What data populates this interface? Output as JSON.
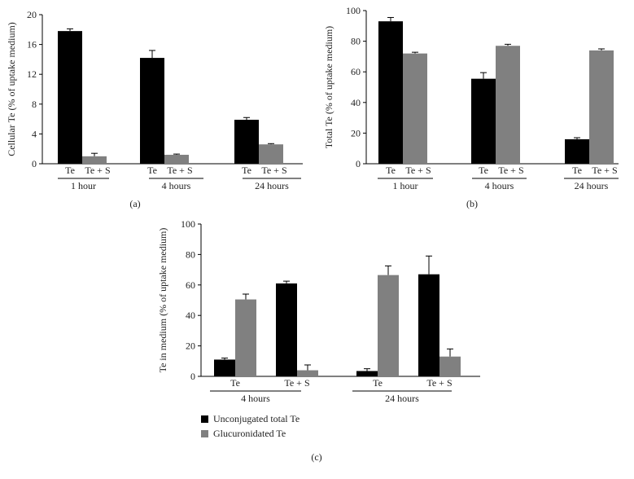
{
  "colors": {
    "black_bar": "#000000",
    "gray_bar": "#808080",
    "axis": "#000000"
  },
  "chart_data": [
    {
      "id": "a",
      "type": "bar",
      "panel_label": "(a)",
      "ylabel": "Cellular Te (% of uptake medium)",
      "ylim": [
        0,
        20
      ],
      "yticks": [
        0,
        4,
        8,
        12,
        16,
        20
      ],
      "groups": [
        {
          "label": "1 hour",
          "bars": [
            {
              "label": "Te",
              "value": 17.8,
              "error": 0.3,
              "color": "#000000"
            },
            {
              "label": "Te + S",
              "value": 1.0,
              "error": 0.4,
              "color": "#808080"
            }
          ]
        },
        {
          "label": "4 hours",
          "bars": [
            {
              "label": "Te",
              "value": 14.2,
              "error": 1.0,
              "color": "#000000"
            },
            {
              "label": "Te + S",
              "value": 1.2,
              "error": 0.1,
              "color": "#808080"
            }
          ]
        },
        {
          "label": "24 hours",
          "bars": [
            {
              "label": "Te",
              "value": 5.9,
              "error": 0.3,
              "color": "#000000"
            },
            {
              "label": "Te + S",
              "value": 2.6,
              "error": 0.1,
              "color": "#808080"
            }
          ]
        }
      ]
    },
    {
      "id": "b",
      "type": "bar",
      "panel_label": "(b)",
      "ylabel": "Total Te (% of uptake medium)",
      "ylim": [
        0,
        100
      ],
      "yticks": [
        0,
        20,
        40,
        60,
        80,
        100
      ],
      "groups": [
        {
          "label": "1 hour",
          "bars": [
            {
              "label": "Te",
              "value": 93,
              "error": 2.5,
              "color": "#000000"
            },
            {
              "label": "Te + S",
              "value": 72,
              "error": 0.8,
              "color": "#808080"
            }
          ]
        },
        {
          "label": "4 hours",
          "bars": [
            {
              "label": "Te",
              "value": 55.5,
              "error": 4,
              "color": "#000000"
            },
            {
              "label": "Te + S",
              "value": 77,
              "error": 1,
              "color": "#808080"
            }
          ]
        },
        {
          "label": "24 hours",
          "bars": [
            {
              "label": "Te",
              "value": 16,
              "error": 1,
              "color": "#000000"
            },
            {
              "label": "Te + S",
              "value": 74,
              "error": 1,
              "color": "#808080"
            }
          ]
        }
      ]
    },
    {
      "id": "c",
      "type": "bar",
      "panel_label": "(c)",
      "ylabel": "Te in medium (% of uptake medium)",
      "ylim": [
        0,
        100
      ],
      "yticks": [
        0,
        20,
        40,
        60,
        80,
        100
      ],
      "groups": [
        {
          "label": "4 hours",
          "subgroups": [
            {
              "label": "Te",
              "bars": [
                {
                  "series": "Unconjugated total Te",
                  "value": 11,
                  "error": 1,
                  "color": "#000000"
                },
                {
                  "series": "Glucuronidated Te",
                  "value": 50.5,
                  "error": 3.5,
                  "color": "#808080"
                }
              ]
            },
            {
              "label": "Te + S",
              "bars": [
                {
                  "series": "Unconjugated total Te",
                  "value": 61,
                  "error": 1.5,
                  "color": "#000000"
                },
                {
                  "series": "Glucuronidated Te",
                  "value": 4,
                  "error": 3.5,
                  "color": "#808080"
                }
              ]
            }
          ]
        },
        {
          "label": "24 hours",
          "subgroups": [
            {
              "label": "Te",
              "bars": [
                {
                  "series": "Unconjugated total Te",
                  "value": 3.5,
                  "error": 1.5,
                  "color": "#000000"
                },
                {
                  "series": "Glucuronidated Te",
                  "value": 66.5,
                  "error": 6,
                  "color": "#808080"
                }
              ]
            },
            {
              "label": "Te + S",
              "bars": [
                {
                  "series": "Unconjugated total Te",
                  "value": 67,
                  "error": 12,
                  "color": "#000000"
                },
                {
                  "series": "Glucuronidated Te",
                  "value": 13,
                  "error": 5,
                  "color": "#808080"
                }
              ]
            }
          ]
        }
      ],
      "legend": [
        {
          "label": "Unconjugated total Te",
          "color": "#000000"
        },
        {
          "label": "Glucuronidated Te",
          "color": "#808080"
        }
      ]
    }
  ]
}
